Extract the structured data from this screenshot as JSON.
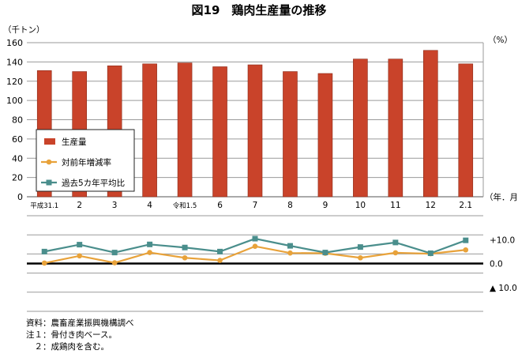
{
  "notes": [
    "資料：農畜産業振興機構調べ",
    "注１：骨付き肉ベース。",
    "　２：成鶏肉を含む。"
  ],
  "chart_data": {
    "type": "bar",
    "title": "図19　鶏肉生産量の推移",
    "xlabel": "（年．月）",
    "ylabel": "（千トン）",
    "y2label": "（%）",
    "categories": [
      "平成31.1",
      "2",
      "3",
      "4",
      "令和1.5",
      "6",
      "7",
      "8",
      "9",
      "10",
      "11",
      "12",
      "2.1"
    ],
    "ylim": [
      0,
      160
    ],
    "yticks": [
      "0",
      "20",
      "40",
      "60",
      "80",
      "100",
      "120",
      "140",
      "160"
    ],
    "y2ticks": [
      "+10.0",
      "0.0",
      "▲ 10.0"
    ],
    "y2lim": [
      -20,
      20
    ],
    "grid": true,
    "legend_position": "lower-left",
    "series": [
      {
        "name": "生産量",
        "type": "bar",
        "color": "#c9432a",
        "values": [
          131,
          130,
          136,
          138,
          139,
          135,
          137,
          130,
          128,
          143,
          143,
          152,
          138
        ]
      },
      {
        "name": "対前年増減率",
        "type": "line",
        "marker": "circle",
        "color": "#e8a23a",
        "values": [
          0.2,
          3.2,
          0.3,
          4.6,
          2.4,
          1.3,
          7.2,
          4.4,
          4.3,
          2.4,
          4.5,
          4.1,
          5.7
        ]
      },
      {
        "name": "過去5カ年平均比",
        "type": "line",
        "marker": "square",
        "color": "#4a8e8c",
        "values": [
          5.0,
          7.9,
          4.6,
          8.0,
          6.7,
          5.0,
          10.4,
          7.4,
          4.6,
          6.9,
          8.8,
          4.3,
          9.7
        ]
      }
    ]
  }
}
